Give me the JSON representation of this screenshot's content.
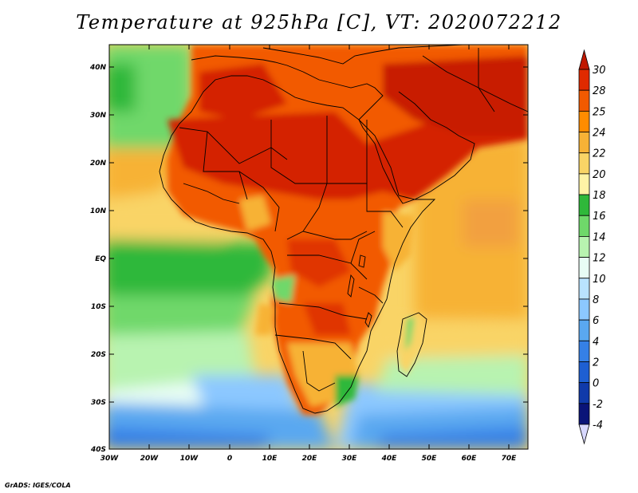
{
  "title": "Temperature at 925hPa [C], VT: 2020072212",
  "footer": "GrADS: IGES/COLA",
  "lat_labels": [
    "40N",
    "30N",
    "20N",
    "10N",
    "EQ",
    "10S",
    "20S",
    "30S",
    "40S"
  ],
  "lon_labels": [
    "30W",
    "20W",
    "10W",
    "0",
    "10E",
    "20E",
    "30E",
    "40E",
    "50E",
    "60E",
    "70E"
  ],
  "colorbar": {
    "labels": [
      "30",
      "28",
      "25",
      "24",
      "22",
      "20",
      "18",
      "16",
      "14",
      "12",
      "10",
      "8",
      "6",
      "4",
      "2",
      "0",
      "-2",
      "-4"
    ],
    "colors": [
      "#c01800",
      "#e02a00",
      "#f25a00",
      "#ff8c00",
      "#f7b236",
      "#f9d466",
      "#fff3a6",
      "#2fb83a",
      "#6fd86a",
      "#b8f3b0",
      "#e8fdf5",
      "#b9e3ff",
      "#8cc8ff",
      "#5aa8f0",
      "#3580e6",
      "#1e5fd2",
      "#103aaa",
      "#0a1478"
    ],
    "top_color": "#c01800",
    "bottom_color": "#d8d8ff"
  }
}
